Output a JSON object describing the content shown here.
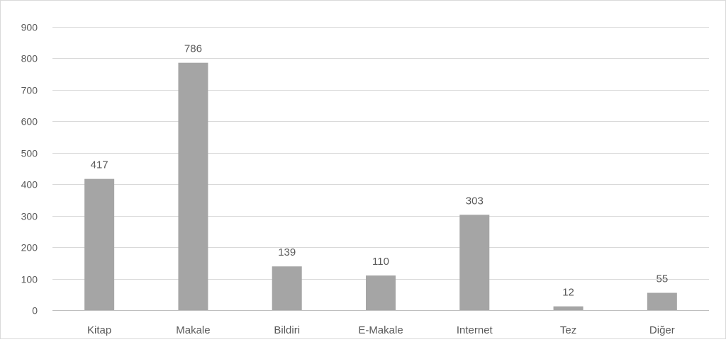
{
  "chart_data": {
    "type": "bar",
    "title": "",
    "xlabel": "",
    "ylabel": "",
    "categories": [
      "Kitap",
      "Makale",
      "Bildiri",
      "E-Makale",
      "Internet",
      "Tez",
      "Diğer"
    ],
    "values": [
      417,
      786,
      139,
      110,
      303,
      12,
      55
    ],
    "data_labels": [
      "417",
      "786",
      "139",
      "110",
      "303",
      "12",
      "55"
    ],
    "ylim": [
      0,
      900
    ],
    "yticks": [
      0,
      100,
      200,
      300,
      400,
      500,
      600,
      700,
      800,
      900
    ],
    "grid": true,
    "legend": "none",
    "colors": {
      "bar": "#a5a5a5",
      "grid": "#d9d9d9",
      "text": "#595959",
      "axis": "#bfbfbf"
    }
  }
}
